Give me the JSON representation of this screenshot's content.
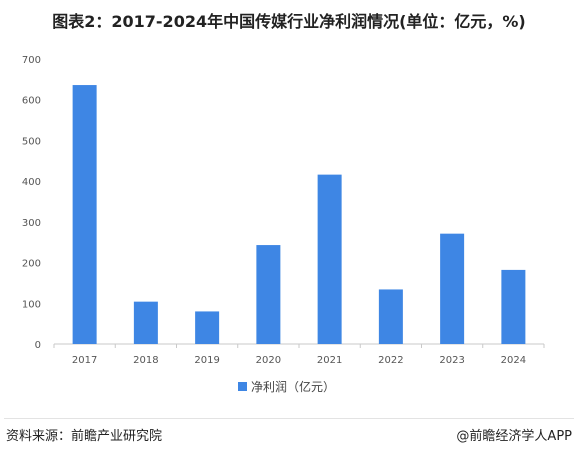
{
  "title": "图表2：2017-2024年中国传媒行业净利润情况(单位：亿元，%)",
  "footer": {
    "source": "资料来源：前瞻产业研究院",
    "brand": "@前瞻经济学人APP"
  },
  "colors": {
    "bar": "#3e86e4",
    "axis": "#c9c9c9",
    "text": "#555555"
  },
  "chart_data": {
    "type": "bar",
    "categories": [
      "2017",
      "2018",
      "2019",
      "2020",
      "2021",
      "2022",
      "2023",
      "2024"
    ],
    "series": [
      {
        "name": "净利润（亿元）",
        "values": [
          636,
          104,
          80,
          243,
          416,
          134,
          271,
          182
        ]
      }
    ],
    "ylim": [
      0,
      700
    ],
    "yticks": [
      0,
      100,
      200,
      300,
      400,
      500,
      600,
      700
    ],
    "grid": false,
    "legend": "bottom"
  }
}
